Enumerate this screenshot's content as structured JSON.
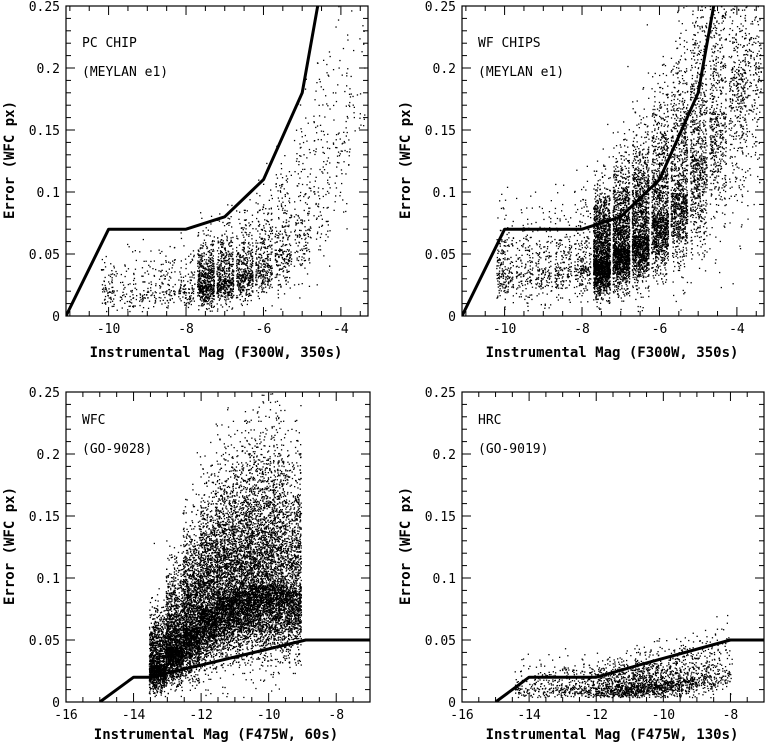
{
  "chart_data": [
    {
      "type": "scatter",
      "panel_label": [
        "PC CHIP",
        "(MEYLAN e1)"
      ],
      "xlabel": "Instrumental Mag (F300W, 350s)",
      "ylabel": "Error (WFC px)",
      "xlim": [
        -11.1,
        -3.3
      ],
      "ylim": [
        0,
        0.25
      ],
      "xticks": [
        -10,
        -8,
        -6,
        -4
      ],
      "yticks": [
        0,
        0.05,
        0.1,
        0.15,
        0.2,
        0.25
      ],
      "ytick_labels": [
        "0",
        "0.05",
        "0.1",
        "0.15",
        "0.2",
        "0.25"
      ],
      "cut_line": {
        "x": [
          -11.1,
          -10.0,
          -8.0,
          -7.0,
          -6.0,
          -5.0,
          -4.6
        ],
        "y": [
          0.0,
          0.07,
          0.07,
          0.08,
          0.11,
          0.18,
          0.25
        ]
      },
      "point_density": [
        {
          "x": -10.0,
          "y": 0.021,
          "n": 80
        },
        {
          "x": -9.5,
          "y": 0.02,
          "n": 60
        },
        {
          "x": -9.0,
          "y": 0.021,
          "n": 70
        },
        {
          "x": -8.5,
          "y": 0.022,
          "n": 90
        },
        {
          "x": -8.0,
          "y": 0.023,
          "n": 120
        },
        {
          "x": -7.5,
          "y": 0.026,
          "n": 600
        },
        {
          "x": -7.0,
          "y": 0.03,
          "n": 500
        },
        {
          "x": -6.5,
          "y": 0.035,
          "n": 400
        },
        {
          "x": -6.0,
          "y": 0.042,
          "n": 320
        },
        {
          "x": -5.5,
          "y": 0.055,
          "n": 240
        },
        {
          "x": -5.0,
          "y": 0.075,
          "n": 170
        },
        {
          "x": -4.5,
          "y": 0.105,
          "n": 120
        },
        {
          "x": -4.0,
          "y": 0.15,
          "n": 90
        },
        {
          "x": -3.6,
          "y": 0.2,
          "n": 50
        }
      ]
    },
    {
      "type": "scatter",
      "panel_label": [
        "WF CHIPS",
        "(MEYLAN e1)"
      ],
      "xlabel": "Instrumental Mag (F300W, 350s)",
      "ylabel": "Error (WFC px)",
      "xlim": [
        -11.1,
        -3.3
      ],
      "ylim": [
        0,
        0.25
      ],
      "xticks": [
        -10,
        -8,
        -6,
        -4
      ],
      "yticks": [
        0,
        0.05,
        0.1,
        0.15,
        0.2,
        0.25
      ],
      "ytick_labels": [
        "0",
        "0.05",
        "0.1",
        "0.15",
        "0.2",
        "0.25"
      ],
      "cut_line": {
        "x": [
          -11.1,
          -10.0,
          -8.0,
          -7.0,
          -6.0,
          -5.0,
          -4.6
        ],
        "y": [
          0.0,
          0.07,
          0.07,
          0.08,
          0.11,
          0.18,
          0.25
        ]
      },
      "point_density": [
        {
          "x": -10.0,
          "y": 0.035,
          "n": 200
        },
        {
          "x": -9.5,
          "y": 0.036,
          "n": 140
        },
        {
          "x": -9.0,
          "y": 0.038,
          "n": 150
        },
        {
          "x": -8.5,
          "y": 0.04,
          "n": 180
        },
        {
          "x": -8.0,
          "y": 0.042,
          "n": 220
        },
        {
          "x": -7.5,
          "y": 0.045,
          "n": 1800
        },
        {
          "x": -7.0,
          "y": 0.055,
          "n": 1600
        },
        {
          "x": -6.5,
          "y": 0.065,
          "n": 1400
        },
        {
          "x": -6.0,
          "y": 0.08,
          "n": 1200
        },
        {
          "x": -5.5,
          "y": 0.1,
          "n": 1000
        },
        {
          "x": -5.0,
          "y": 0.13,
          "n": 800
        },
        {
          "x": -4.5,
          "y": 0.165,
          "n": 600
        },
        {
          "x": -4.0,
          "y": 0.2,
          "n": 500
        },
        {
          "x": -3.6,
          "y": 0.23,
          "n": 300
        }
      ]
    },
    {
      "type": "scatter",
      "panel_label": [
        "WFC",
        "(GO-9028)"
      ],
      "xlabel": "Instrumental Mag (F475W, 60s)",
      "ylabel": "Error (WFC px)",
      "xlim": [
        -16,
        -7
      ],
      "ylim": [
        0,
        0.25
      ],
      "xticks": [
        -16,
        -14,
        -12,
        -10,
        -8
      ],
      "yticks": [
        0,
        0.05,
        0.1,
        0.15,
        0.2,
        0.25
      ],
      "ytick_labels": [
        "0",
        "0.05",
        "0.1",
        "0.15",
        "0.2",
        "0.25"
      ],
      "cut_line": {
        "x": [
          -15.0,
          -14.0,
          -13.5,
          -8.9,
          -7.0
        ],
        "y": [
          0.0,
          0.02,
          0.02,
          0.05,
          0.05
        ]
      },
      "point_density": [
        {
          "x": -13.3,
          "y": 0.03,
          "n": 1400
        },
        {
          "x": -12.8,
          "y": 0.045,
          "n": 1700
        },
        {
          "x": -12.3,
          "y": 0.06,
          "n": 1800
        },
        {
          "x": -11.8,
          "y": 0.075,
          "n": 1800
        },
        {
          "x": -11.3,
          "y": 0.085,
          "n": 1800
        },
        {
          "x": -10.8,
          "y": 0.09,
          "n": 1800
        },
        {
          "x": -10.3,
          "y": 0.095,
          "n": 1700
        },
        {
          "x": -9.8,
          "y": 0.095,
          "n": 1600
        },
        {
          "x": -9.3,
          "y": 0.09,
          "n": 1300
        }
      ]
    },
    {
      "type": "scatter",
      "panel_label": [
        "HRC",
        "(GO-9019)"
      ],
      "xlabel": "Instrumental Mag (F475W, 130s)",
      "ylabel": "Error (WFC px)",
      "xlim": [
        -16,
        -7
      ],
      "ylim": [
        0,
        0.25
      ],
      "xticks": [
        -16,
        -14,
        -12,
        -10,
        -8
      ],
      "yticks": [
        0,
        0.05,
        0.1,
        0.15,
        0.2,
        0.25
      ],
      "ytick_labels": [
        "0",
        "0.05",
        "0.1",
        "0.15",
        "0.2",
        "0.25"
      ],
      "cut_line": {
        "x": [
          -15.0,
          -14.0,
          -12.0,
          -10.7,
          -8.0,
          -7.0
        ],
        "y": [
          0.0,
          0.02,
          0.02,
          0.03,
          0.05,
          0.05
        ]
      },
      "point_density": [
        {
          "x": -14.2,
          "y": 0.012,
          "n": 60
        },
        {
          "x": -13.7,
          "y": 0.012,
          "n": 70
        },
        {
          "x": -13.2,
          "y": 0.012,
          "n": 80
        },
        {
          "x": -12.7,
          "y": 0.012,
          "n": 100
        },
        {
          "x": -12.2,
          "y": 0.012,
          "n": 140
        },
        {
          "x": -11.7,
          "y": 0.012,
          "n": 220
        },
        {
          "x": -11.2,
          "y": 0.013,
          "n": 280
        },
        {
          "x": -10.7,
          "y": 0.014,
          "n": 300
        },
        {
          "x": -10.2,
          "y": 0.015,
          "n": 300
        },
        {
          "x": -9.7,
          "y": 0.017,
          "n": 260
        },
        {
          "x": -9.2,
          "y": 0.019,
          "n": 200
        },
        {
          "x": -8.7,
          "y": 0.022,
          "n": 150
        },
        {
          "x": -8.2,
          "y": 0.026,
          "n": 90
        }
      ]
    }
  ]
}
